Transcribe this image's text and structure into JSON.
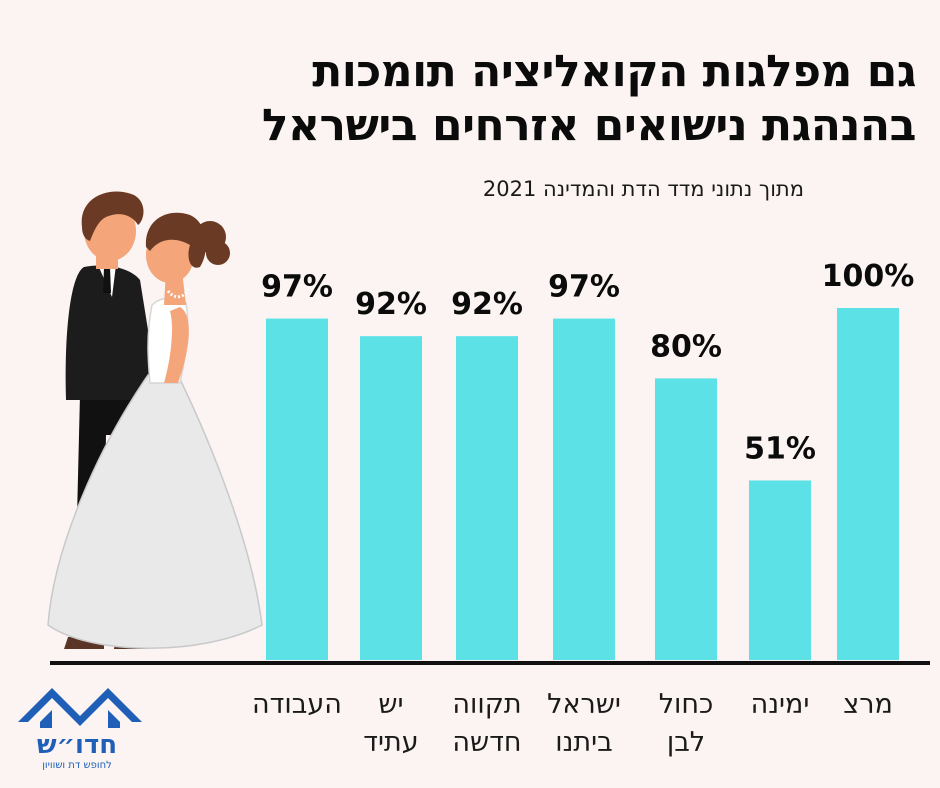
{
  "title_line1": "גם מפלגות הקואליציה תומכות",
  "title_line2": "בהנהגת נישואים אזרחים בישראל",
  "subtitle": "מתוך נתוני מדד הדת והמדינה 2021",
  "brand": {
    "name": "חדו״ש",
    "tagline": "לחופש דת ושוויון"
  },
  "colors": {
    "bar": "#5ce1e6",
    "background": "#fbf4f2",
    "text": "#0b0b0b",
    "brand": "#1f5fb8"
  },
  "chart_data": {
    "type": "bar",
    "categories": [
      "העבודה",
      "יש עתיד",
      "תקווה חדשה",
      "ישראל ביתנו",
      "כחול לבן",
      "ימינה",
      "מרצ"
    ],
    "category_lines": [
      [
        "העבודה"
      ],
      [
        "יש",
        "עתיד"
      ],
      [
        "תקווה",
        "חדשה"
      ],
      [
        "ישראל",
        "ביתנו"
      ],
      [
        "כחול",
        "לבן"
      ],
      [
        "ימינה"
      ],
      [
        "מרצ"
      ]
    ],
    "values": [
      97,
      92,
      92,
      97,
      80,
      51,
      100
    ],
    "labels": [
      "97%",
      "92%",
      "92%",
      "97%",
      "80%",
      "51%",
      "100%"
    ],
    "unit": "%",
    "ylim": [
      0,
      100
    ],
    "grid": false,
    "legend": "none"
  }
}
